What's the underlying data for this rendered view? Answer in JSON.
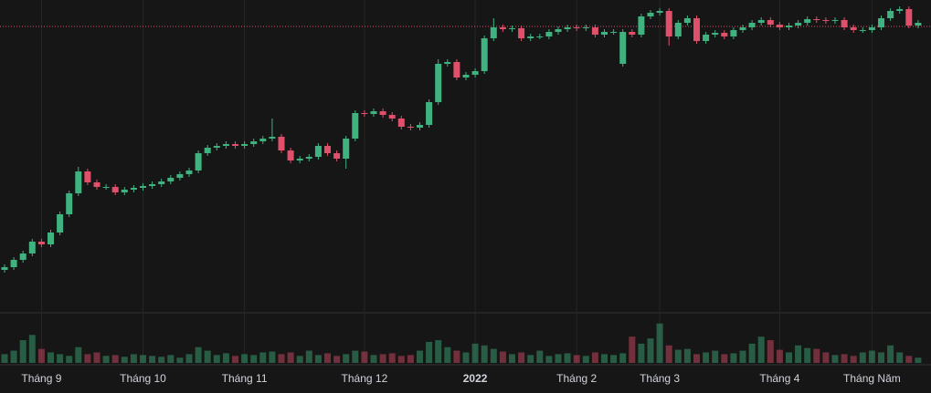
{
  "chart_data": {
    "type": "candlestick",
    "categories": [
      null,
      null,
      null,
      null,
      "Tháng 9",
      null,
      null,
      null,
      null,
      null,
      null,
      null,
      null,
      null,
      null,
      "Tháng 10",
      null,
      null,
      null,
      null,
      null,
      null,
      null,
      null,
      null,
      null,
      "Tháng 11",
      null,
      null,
      null,
      null,
      null,
      null,
      null,
      null,
      null,
      null,
      null,
      null,
      "Tháng 12",
      null,
      null,
      null,
      null,
      null,
      null,
      null,
      null,
      null,
      null,
      null,
      "2022",
      null,
      null,
      null,
      null,
      null,
      null,
      null,
      null,
      null,
      null,
      "Tháng 2",
      null,
      null,
      null,
      null,
      null,
      null,
      null,
      null,
      "Tháng 3",
      null,
      null,
      null,
      null,
      null,
      null,
      null,
      null,
      null,
      null,
      null,
      null,
      "Tháng 4",
      null,
      null,
      null,
      null,
      null,
      null,
      null,
      null,
      null,
      "Tháng Năm",
      null,
      null,
      null,
      null,
      null
    ],
    "open": [
      44,
      47,
      55,
      62,
      75,
      72,
      85,
      105,
      128,
      152,
      140,
      135,
      135,
      129,
      132,
      134,
      136,
      138,
      141,
      145,
      149,
      153,
      172,
      178,
      180,
      182,
      180,
      182,
      185,
      188,
      190,
      175,
      164,
      166,
      168,
      180,
      172,
      166,
      188,
      216,
      215,
      218,
      214,
      210,
      201,
      200,
      203,
      228,
      270,
      272,
      255,
      258,
      262,
      298,
      310,
      308,
      309,
      298,
      300,
      300,
      305,
      308,
      310,
      309,
      310,
      302,
      305,
      270,
      305,
      302,
      322,
      326,
      328,
      300,
      315,
      320,
      295,
      302,
      304,
      300,
      307,
      310,
      315,
      318,
      313,
      310,
      312,
      315,
      319,
      318,
      317,
      318,
      310,
      307,
      307,
      310,
      320,
      328,
      330,
      312
    ],
    "high": [
      50,
      58,
      65,
      78,
      78,
      88,
      108,
      131,
      157,
      155,
      143,
      138,
      138,
      135,
      137,
      139,
      141,
      144,
      148,
      152,
      156,
      175,
      181,
      183,
      185,
      185,
      185,
      188,
      191,
      210,
      193,
      178,
      169,
      171,
      183,
      183,
      175,
      191,
      219,
      219,
      221,
      221,
      217,
      213,
      204,
      206,
      231,
      275,
      275,
      275,
      261,
      265,
      301,
      320,
      313,
      312,
      312,
      303,
      303,
      308,
      311,
      313,
      313,
      313,
      313,
      308,
      308,
      308,
      308,
      325,
      329,
      331,
      331,
      318,
      323,
      323,
      305,
      307,
      307,
      310,
      313,
      318,
      321,
      321,
      316,
      315,
      318,
      322,
      322,
      321,
      321,
      321,
      313,
      310,
      313,
      323,
      331,
      333,
      333,
      318
    ],
    "low": [
      41,
      44,
      52,
      59,
      69,
      69,
      82,
      102,
      125,
      137,
      132,
      132,
      126,
      126,
      129,
      131,
      133,
      135,
      138,
      142,
      146,
      150,
      169,
      175,
      177,
      177,
      177,
      179,
      182,
      185,
      172,
      161,
      161,
      163,
      165,
      169,
      163,
      155,
      185,
      212,
      212,
      211,
      207,
      198,
      197,
      197,
      200,
      225,
      267,
      252,
      252,
      255,
      259,
      295,
      305,
      305,
      295,
      295,
      297,
      297,
      302,
      305,
      306,
      306,
      299,
      299,
      302,
      267,
      299,
      299,
      319,
      323,
      290,
      297,
      312,
      292,
      292,
      299,
      297,
      297,
      304,
      307,
      312,
      310,
      307,
      307,
      309,
      312,
      315,
      314,
      314,
      307,
      304,
      304,
      304,
      307,
      317,
      325,
      309,
      309
    ],
    "close": [
      47,
      55,
      62,
      75,
      72,
      85,
      105,
      128,
      152,
      140,
      135,
      135,
      129,
      132,
      134,
      136,
      138,
      141,
      145,
      149,
      153,
      172,
      178,
      180,
      182,
      180,
      182,
      185,
      188,
      190,
      175,
      164,
      166,
      168,
      180,
      172,
      166,
      188,
      216,
      215,
      218,
      214,
      210,
      201,
      200,
      203,
      228,
      270,
      272,
      255,
      258,
      262,
      298,
      310,
      308,
      309,
      298,
      300,
      300,
      305,
      308,
      310,
      309,
      310,
      302,
      305,
      305,
      305,
      302,
      322,
      326,
      328,
      300,
      315,
      320,
      295,
      302,
      304,
      300,
      307,
      310,
      315,
      318,
      313,
      310,
      312,
      315,
      319,
      318,
      317,
      318,
      310,
      307,
      307,
      310,
      320,
      328,
      330,
      312,
      315
    ],
    "volume": [
      10,
      14,
      26,
      32,
      16,
      12,
      10,
      8,
      18,
      10,
      12,
      8,
      9,
      7,
      10,
      9,
      8,
      7,
      9,
      6,
      10,
      18,
      14,
      9,
      11,
      8,
      10,
      9,
      12,
      13,
      10,
      12,
      8,
      14,
      9,
      11,
      8,
      10,
      14,
      13,
      9,
      10,
      11,
      8,
      9,
      14,
      24,
      26,
      18,
      14,
      12,
      22,
      20,
      16,
      13,
      10,
      12,
      9,
      14,
      8,
      10,
      11,
      9,
      8,
      12,
      10,
      9,
      11,
      30,
      22,
      28,
      45,
      20,
      15,
      16,
      10,
      12,
      14,
      10,
      11,
      14,
      22,
      30,
      26,
      15,
      12,
      20,
      17,
      16,
      12,
      9,
      10,
      8,
      12,
      14,
      12,
      20,
      12,
      8,
      6
    ],
    "ylim": [
      0,
      340
    ],
    "volume_ylim": [
      0,
      50
    ],
    "up_color": "#3fb27f",
    "down_color": "#e0506a",
    "ref_line": {
      "value": 311,
      "color": "#e0506a"
    }
  }
}
